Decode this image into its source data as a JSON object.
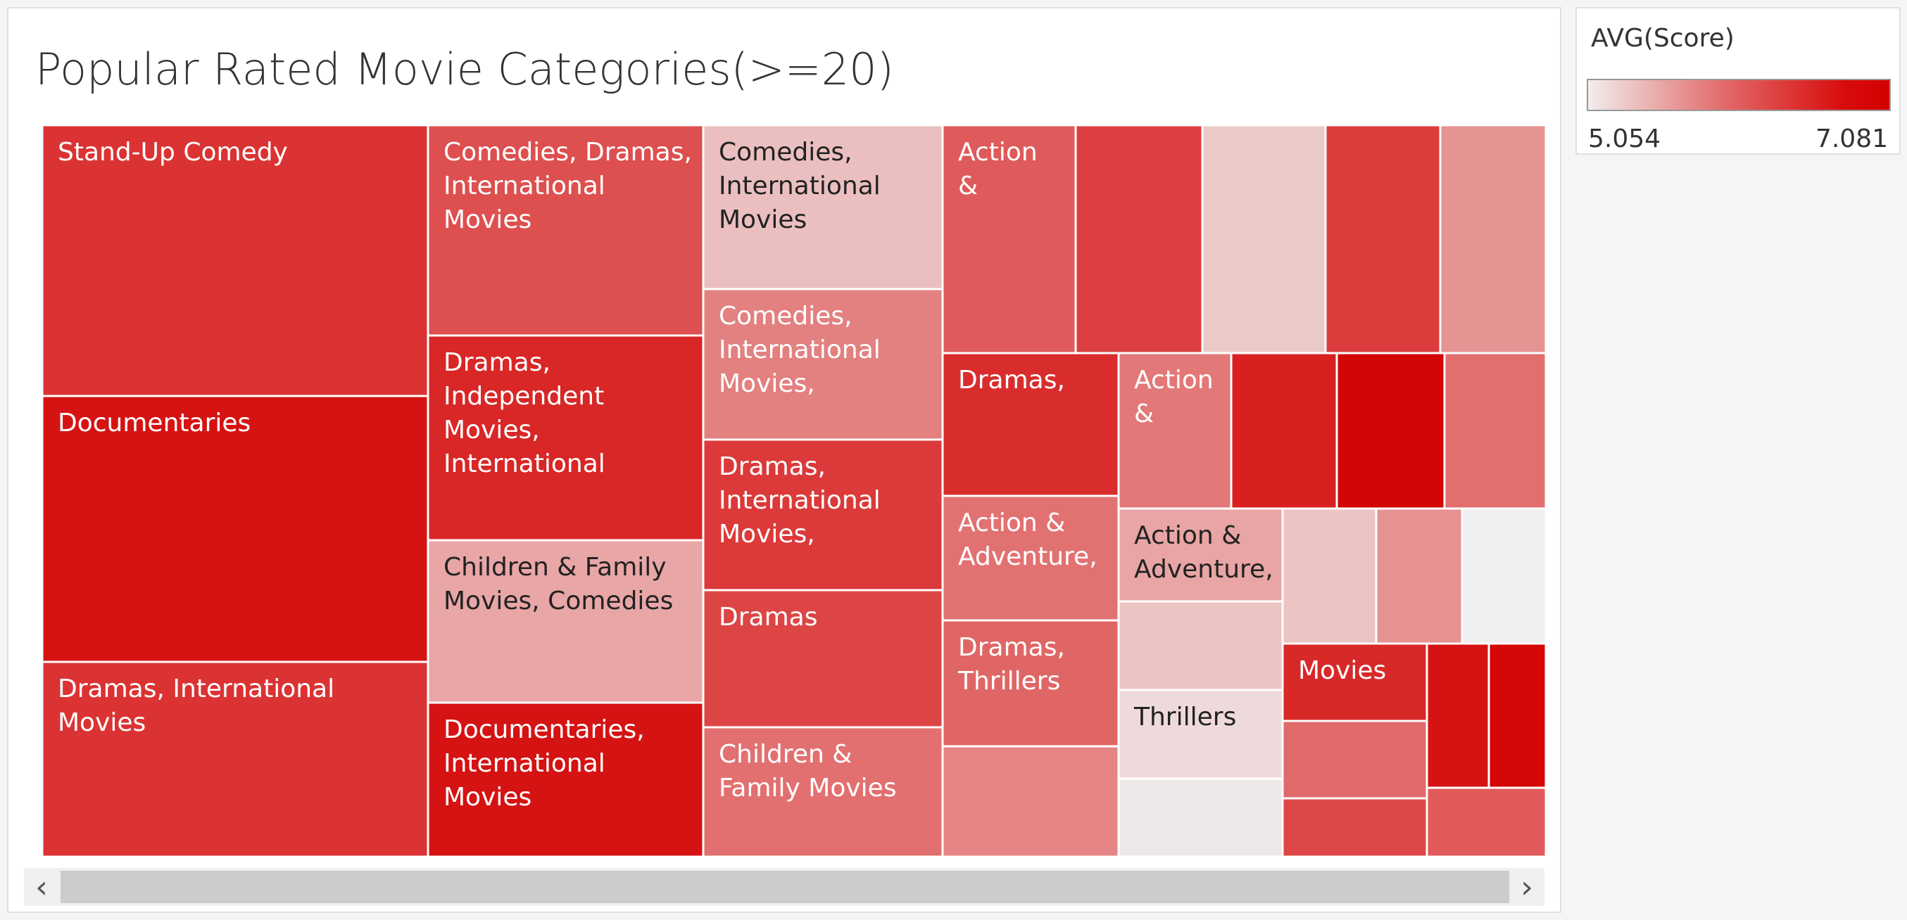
{
  "chart_data": {
    "type": "treemap",
    "title": "Popular Rated Movie Categories(>=20)",
    "color_measure": "AVG(Score)",
    "color_range": [
      5.054,
      7.081
    ],
    "cells": [
      {
        "label": "Stand-Up Comedy",
        "color": "#db3333"
      },
      {
        "label": "Documentaries",
        "color": "#d51313"
      },
      {
        "label": "Dramas, International Movies",
        "color": "#db3333"
      },
      {
        "label": "Comedies, Dramas, International Movies",
        "color": "#de4f4f"
      },
      {
        "label": "Dramas, Independent Movies, International",
        "color": "#d92626"
      },
      {
        "label": "Children & Family Movies, Comedies",
        "color": "#e9a6a6"
      },
      {
        "label": "Documentaries, International Movies",
        "color": "#d51313"
      },
      {
        "label": "Comedies, International Movies",
        "color": "#ebbfbf"
      },
      {
        "label": "Comedies, International Movies,",
        "color": "#e38080"
      },
      {
        "label": "Dramas, International Movies,",
        "color": "#dc3a3a"
      },
      {
        "label": "Dramas",
        "color": "#dd4545"
      },
      {
        "label": "Children & Family Movies",
        "color": "#e27070"
      },
      {
        "label": "Action &",
        "color": "#df5a5a"
      },
      {
        "label": "",
        "color": "#dc3f3f"
      },
      {
        "label": "",
        "color": "#ecc9c9"
      },
      {
        "label": "",
        "color": "#dc3d3d"
      },
      {
        "label": "",
        "color": "#e69393"
      },
      {
        "label": "Dramas,",
        "color": "#d92d2d"
      },
      {
        "label": "Action &",
        "color": "#e27878"
      },
      {
        "label": "",
        "color": "#d82020"
      },
      {
        "label": "",
        "color": "#d30606"
      },
      {
        "label": "",
        "color": "#e26e6e"
      },
      {
        "label": "Action & Adventure,",
        "color": "#e27272"
      },
      {
        "label": "Action & Adventure,",
        "color": "#e9a5a5"
      },
      {
        "label": "Dramas, Thrillers",
        "color": "#e06666"
      },
      {
        "label": "",
        "color": "#e58585"
      },
      {
        "label": "",
        "color": "#ecc4c4"
      },
      {
        "label": "Thrillers",
        "color": "#eedada"
      },
      {
        "label": "",
        "color": "#efe8e8"
      },
      {
        "label": "",
        "color": "#ecc4c4"
      },
      {
        "label": "",
        "color": "#e69292"
      },
      {
        "label": "",
        "color": "#efefef"
      },
      {
        "label": "Movies",
        "color": "#d82828"
      },
      {
        "label": "",
        "color": "#e06a6a"
      },
      {
        "label": "",
        "color": "#dd4747"
      },
      {
        "label": "",
        "color": "#d61313"
      },
      {
        "label": "",
        "color": "#d40606"
      },
      {
        "label": "",
        "color": "#e05a5a"
      }
    ]
  },
  "legend": {
    "title": "AVG(Score)",
    "min_label": "5.054",
    "max_label": "7.081"
  },
  "scrollbar": {
    "left_icon": "chevron-left-icon",
    "right_icon": "chevron-right-icon",
    "left_glyph": "‹",
    "right_glyph": "›"
  }
}
